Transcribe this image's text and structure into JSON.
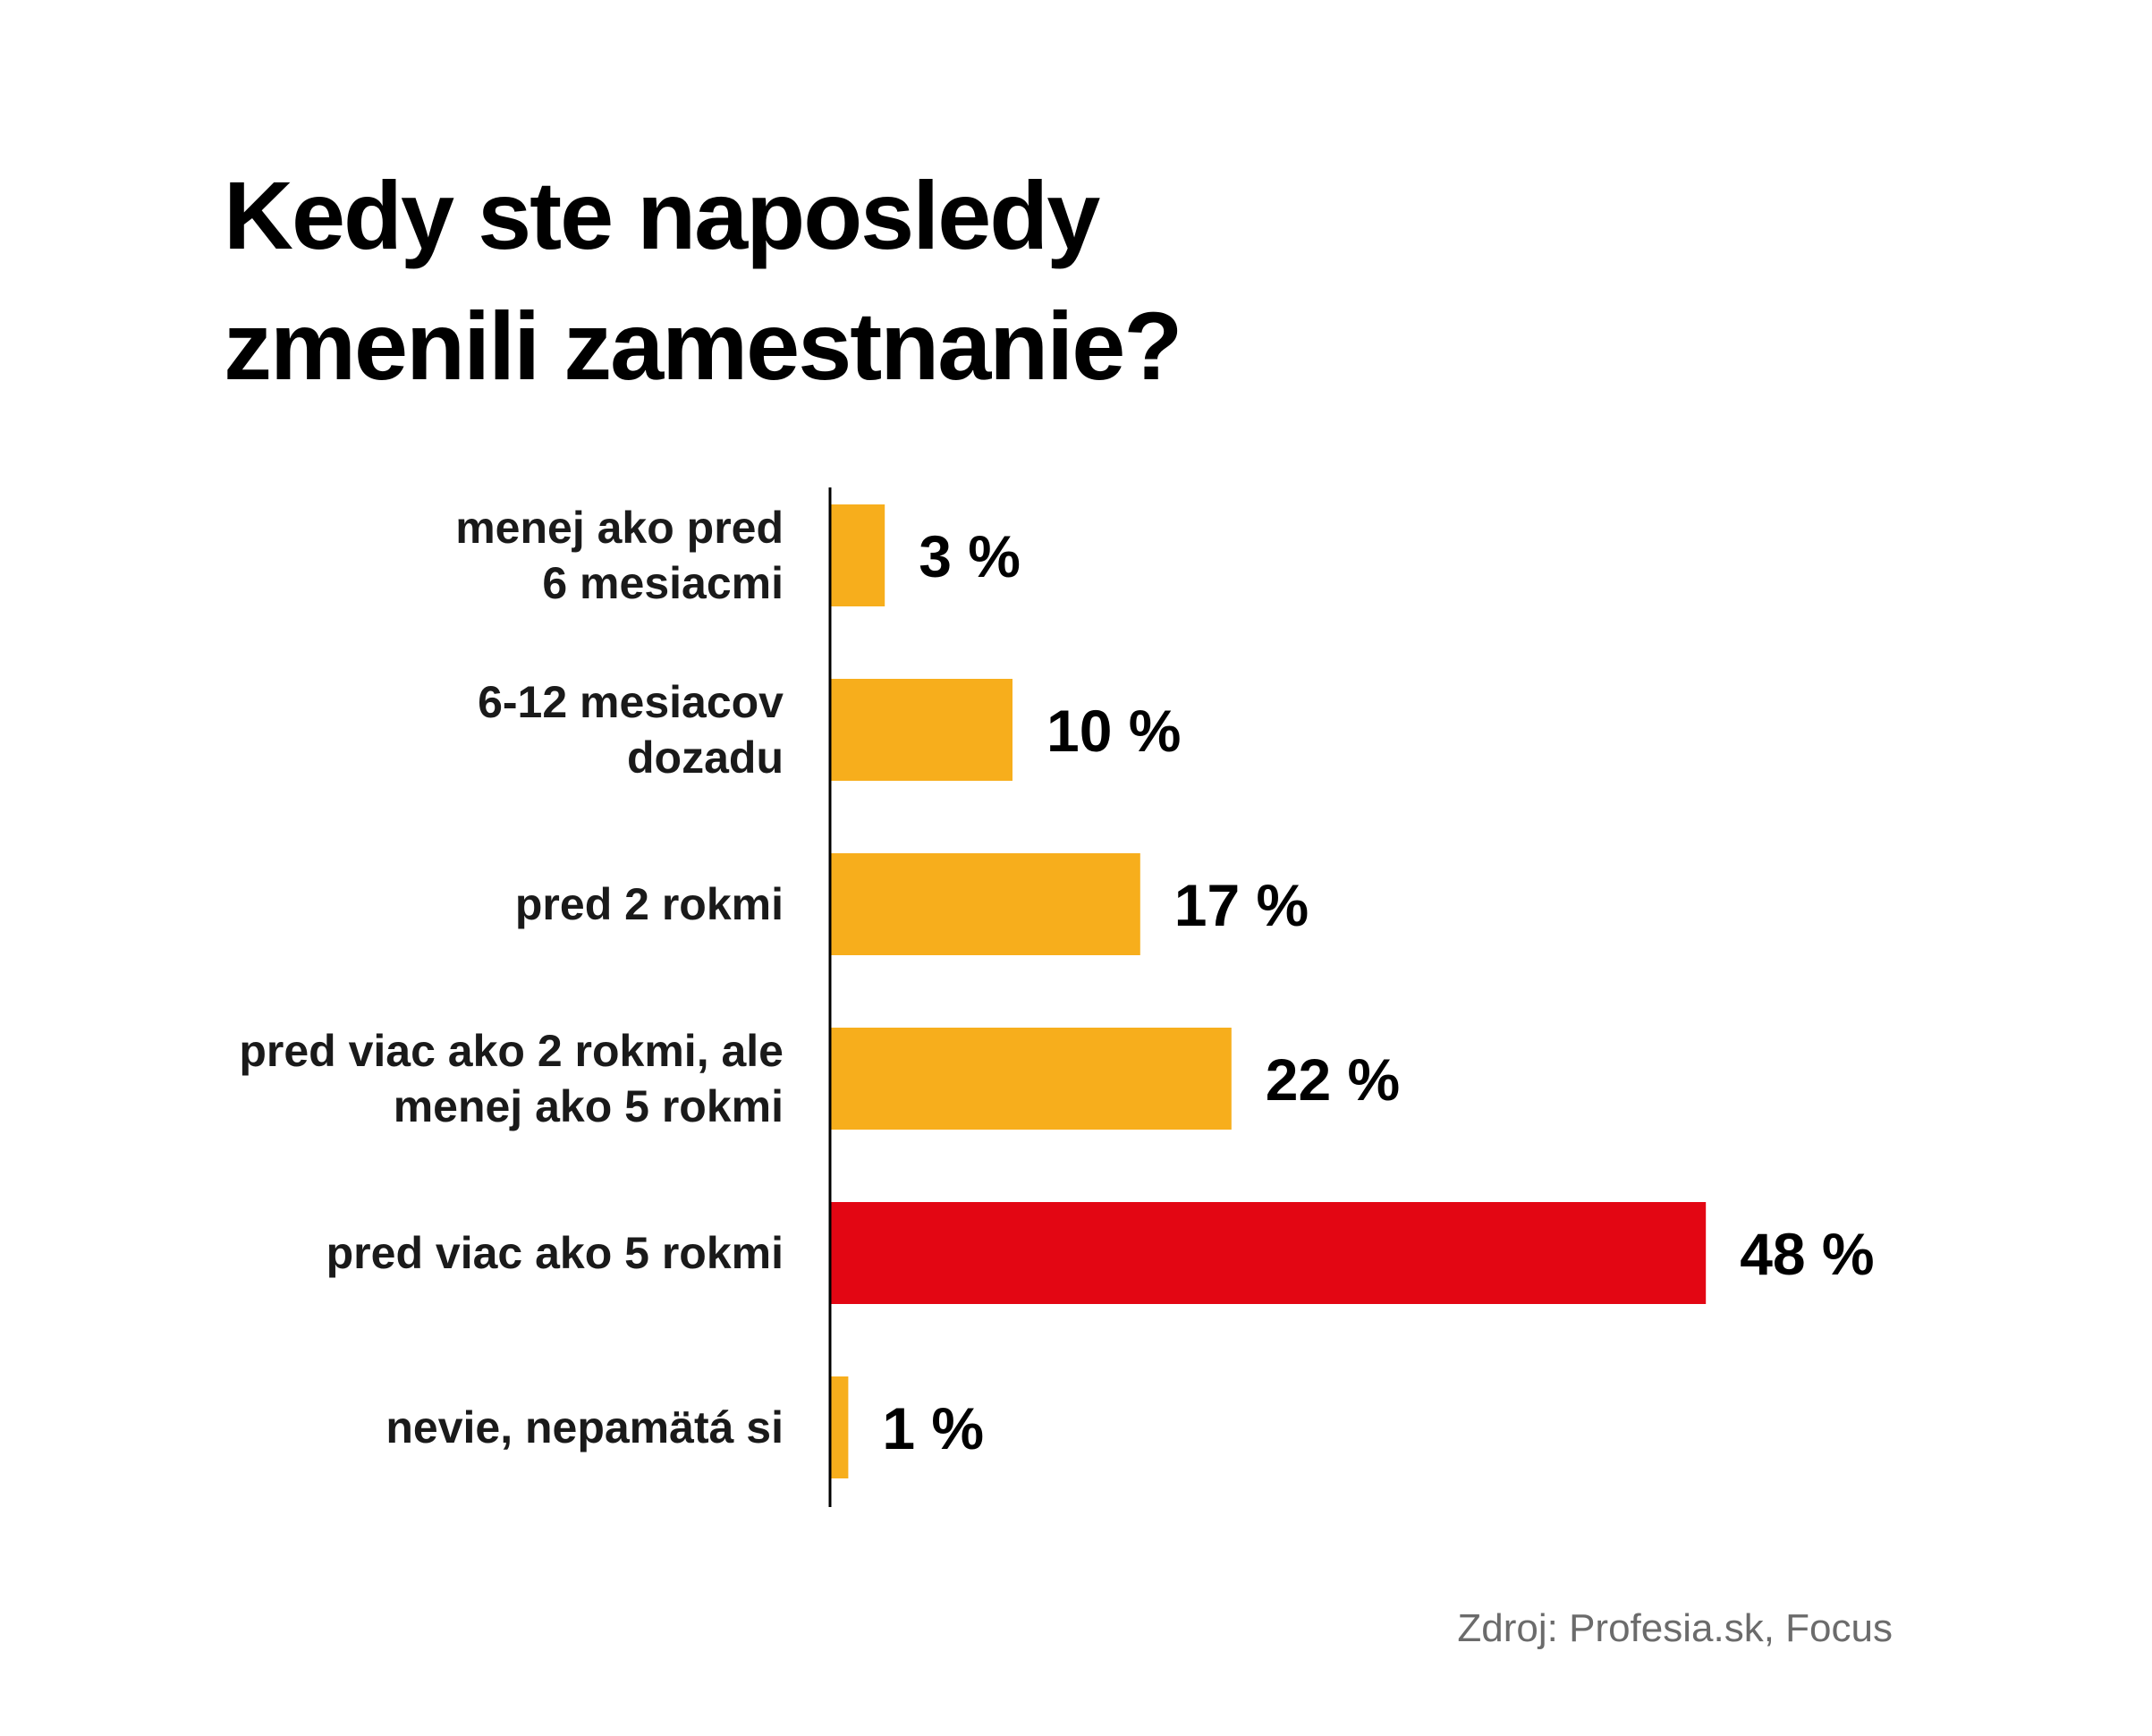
{
  "title": {
    "line1": "Kedy ste naposledy",
    "line2": "zmenili zamestnanie?"
  },
  "source": "Zdroj: Profesia.sk, Focus",
  "colors": {
    "bar": "#f7ae1c",
    "highlight": "#e30613",
    "axis": "#000000"
  },
  "chart_data": {
    "type": "bar",
    "orientation": "horizontal",
    "title": "Kedy ste naposledy zmenili zamestnanie?",
    "categories": [
      [
        "menej ako pred",
        "6 mesiacmi"
      ],
      [
        "6-12 mesiacov",
        "dozadu"
      ],
      [
        "pred 2 rokmi"
      ],
      [
        "pred viac ako 2 rokmi, ale",
        "menej ako 5 rokmi"
      ],
      [
        "pred viac ako 5 rokmi"
      ],
      [
        "nevie, nepamätá si"
      ]
    ],
    "values": [
      3,
      10,
      17,
      22,
      48,
      1
    ],
    "value_labels": [
      "3 %",
      "10 %",
      "17 %",
      "22 %",
      "48 %",
      "1 %"
    ],
    "highlight_index": 4,
    "unit": "%",
    "xlim": [
      0,
      50
    ],
    "grid": false,
    "legend": "none"
  }
}
